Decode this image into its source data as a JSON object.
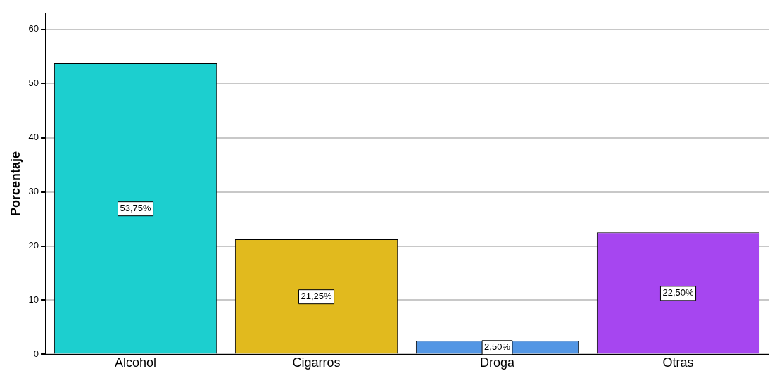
{
  "chart_data": {
    "type": "bar",
    "ylabel": "Porcentaje",
    "categories": [
      "Alcohol",
      "Cigarros",
      "Droga",
      "Otras"
    ],
    "values": [
      53.75,
      21.25,
      2.5,
      22.5
    ],
    "colors": [
      "#1ccfcf",
      "#e1ba1e",
      "#5396e4",
      "#a646f0"
    ],
    "value_labels": [
      "53,75%",
      "21,25%",
      "2,50%",
      "22,50%"
    ],
    "ylim": [
      0,
      63
    ],
    "yticks": [
      0,
      10,
      20,
      30,
      40,
      50,
      60
    ],
    "grid": "y",
    "legend": false
  }
}
